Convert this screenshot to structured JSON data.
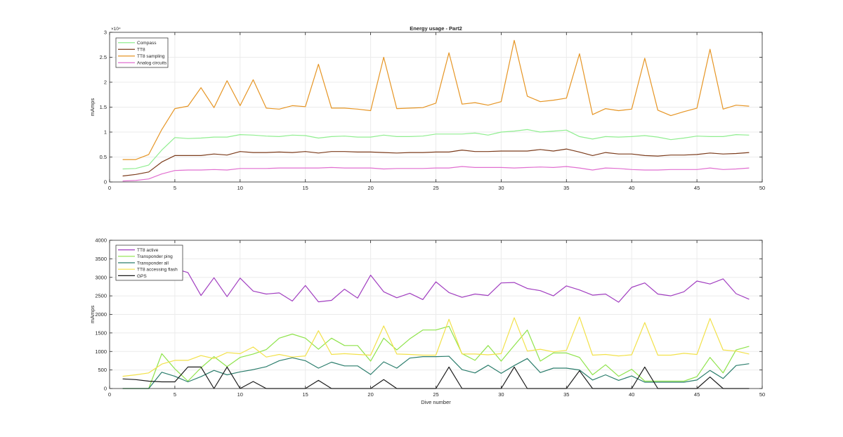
{
  "figure": {
    "background": "#ffffff"
  },
  "chart_data": [
    {
      "type": "line",
      "title": "Energy usage - Part2",
      "xlabel": "",
      "ylabel": "mAmps",
      "xlim": [
        0,
        50
      ],
      "ylim": [
        0,
        3
      ],
      "xticks": [
        0,
        5,
        10,
        15,
        20,
        25,
        30,
        35,
        40,
        45,
        50
      ],
      "yticks": [
        0,
        0.5,
        1,
        1.5,
        2,
        2.5,
        3
      ],
      "ytick_labels": [
        "0",
        "0.5",
        "1",
        "1.5",
        "2",
        "2.5",
        "3"
      ],
      "y_multiplier_label": "×10⁴",
      "grid": true,
      "legend_location": "top-left",
      "x": [
        1,
        2,
        3,
        4,
        5,
        6,
        7,
        8,
        9,
        10,
        11,
        12,
        13,
        14,
        15,
        16,
        17,
        18,
        19,
        20,
        21,
        22,
        23,
        24,
        25,
        26,
        27,
        28,
        29,
        30,
        31,
        32,
        33,
        34,
        35,
        36,
        37,
        38,
        39,
        40,
        41,
        42,
        43,
        44,
        45,
        46,
        47,
        48,
        49
      ],
      "series": [
        {
          "name": "Compass",
          "color": "#90ee90",
          "values": [
            0.26,
            0.27,
            0.34,
            0.64,
            0.89,
            0.87,
            0.88,
            0.9,
            0.9,
            0.95,
            0.94,
            0.92,
            0.91,
            0.94,
            0.93,
            0.88,
            0.91,
            0.92,
            0.9,
            0.9,
            0.94,
            0.91,
            0.91,
            0.92,
            0.96,
            0.96,
            0.96,
            0.98,
            0.94,
            1.0,
            1.02,
            1.05,
            1.0,
            1.02,
            1.04,
            0.91,
            0.86,
            0.91,
            0.9,
            0.91,
            0.93,
            0.9,
            0.85,
            0.88,
            0.92,
            0.91,
            0.91,
            0.95,
            0.94
          ]
        },
        {
          "name": "TT8",
          "color": "#7b3b1b",
          "values": [
            0.12,
            0.15,
            0.2,
            0.4,
            0.53,
            0.53,
            0.53,
            0.56,
            0.54,
            0.61,
            0.59,
            0.59,
            0.6,
            0.59,
            0.61,
            0.58,
            0.61,
            0.61,
            0.6,
            0.6,
            0.59,
            0.58,
            0.59,
            0.59,
            0.6,
            0.6,
            0.64,
            0.61,
            0.61,
            0.62,
            0.62,
            0.62,
            0.65,
            0.62,
            0.66,
            0.6,
            0.53,
            0.59,
            0.56,
            0.56,
            0.53,
            0.52,
            0.54,
            0.54,
            0.55,
            0.58,
            0.56,
            0.57,
            0.59
          ]
        },
        {
          "name": "TT8 sampling",
          "color": "#e69524",
          "values": [
            0.45,
            0.45,
            0.55,
            1.05,
            1.47,
            1.52,
            1.89,
            1.49,
            2.03,
            1.53,
            2.05,
            1.48,
            1.46,
            1.53,
            1.51,
            2.36,
            1.48,
            1.48,
            1.46,
            1.43,
            2.5,
            1.47,
            1.48,
            1.49,
            1.58,
            2.59,
            1.56,
            1.59,
            1.54,
            1.61,
            2.84,
            1.72,
            1.61,
            1.64,
            1.68,
            2.57,
            1.35,
            1.47,
            1.43,
            1.46,
            2.48,
            1.44,
            1.33,
            1.41,
            1.48,
            2.66,
            1.46,
            1.54,
            1.52
          ]
        },
        {
          "name": "Analog circuits",
          "color": "#e16fd0",
          "values": [
            0.02,
            0.03,
            0.06,
            0.16,
            0.23,
            0.24,
            0.24,
            0.25,
            0.24,
            0.27,
            0.27,
            0.27,
            0.28,
            0.28,
            0.28,
            0.28,
            0.29,
            0.28,
            0.28,
            0.28,
            0.26,
            0.27,
            0.27,
            0.27,
            0.28,
            0.28,
            0.31,
            0.29,
            0.29,
            0.29,
            0.28,
            0.29,
            0.3,
            0.29,
            0.31,
            0.28,
            0.24,
            0.28,
            0.27,
            0.25,
            0.24,
            0.24,
            0.25,
            0.25,
            0.25,
            0.28,
            0.25,
            0.26,
            0.28
          ]
        }
      ]
    },
    {
      "type": "line",
      "title": "",
      "xlabel": "Dive number",
      "ylabel": "mAmps",
      "xlim": [
        0,
        50
      ],
      "ylim": [
        0,
        4000
      ],
      "xticks": [
        0,
        5,
        10,
        15,
        20,
        25,
        30,
        35,
        40,
        45,
        50
      ],
      "yticks": [
        0,
        500,
        1000,
        1500,
        2000,
        2500,
        3000,
        3500,
        4000
      ],
      "ytick_labels": [
        "0",
        "500",
        "1000",
        "1500",
        "2000",
        "2500",
        "3000",
        "3500",
        "4000"
      ],
      "grid": true,
      "legend_location": "top-left",
      "x": [
        1,
        2,
        3,
        4,
        5,
        6,
        7,
        8,
        9,
        10,
        11,
        12,
        13,
        14,
        15,
        16,
        17,
        18,
        19,
        20,
        21,
        22,
        23,
        24,
        25,
        26,
        27,
        28,
        29,
        30,
        31,
        32,
        33,
        34,
        35,
        36,
        37,
        38,
        39,
        40,
        41,
        42,
        43,
        44,
        45,
        46,
        47,
        48,
        49
      ],
      "series": [
        {
          "name": "TT8 active",
          "color": "#a13ec0",
          "values": [
            null,
            null,
            null,
            null,
            3230,
            3130,
            2510,
            2990,
            2480,
            2980,
            2630,
            2550,
            2580,
            2360,
            2780,
            2340,
            2380,
            2680,
            2440,
            3060,
            2610,
            2450,
            2570,
            2400,
            2880,
            2590,
            2460,
            2550,
            2510,
            2850,
            2860,
            2700,
            2640,
            2500,
            2770,
            2660,
            2520,
            2550,
            2330,
            2730,
            2850,
            2550,
            2500,
            2610,
            2900,
            2820,
            2960,
            2560,
            2410
          ]
        },
        {
          "name": "Transponder ping",
          "color": "#8ee34a",
          "values": [
            0,
            0,
            0,
            940,
            530,
            200,
            560,
            860,
            590,
            840,
            930,
            1050,
            1360,
            1470,
            1360,
            1060,
            1360,
            1160,
            1160,
            740,
            1360,
            1040,
            1340,
            1580,
            1580,
            1680,
            940,
            760,
            1160,
            740,
            1160,
            1580,
            740,
            960,
            960,
            840,
            370,
            640,
            330,
            520,
            200,
            200,
            200,
            200,
            320,
            840,
            420,
            1040,
            1140
          ]
        },
        {
          "name": "Transponder all",
          "color": "#2b7d6c",
          "values": [
            0,
            0,
            0,
            440,
            330,
            180,
            320,
            490,
            370,
            450,
            510,
            590,
            750,
            830,
            750,
            550,
            710,
            610,
            610,
            380,
            720,
            550,
            820,
            860,
            860,
            870,
            510,
            420,
            630,
            410,
            620,
            810,
            430,
            550,
            550,
            500,
            230,
            370,
            220,
            340,
            170,
            170,
            170,
            170,
            230,
            490,
            270,
            620,
            670
          ]
        },
        {
          "name": "TT8 accessing flash",
          "color": "#f2e14a",
          "values": [
            330,
            370,
            420,
            660,
            760,
            760,
            890,
            810,
            970,
            940,
            1120,
            850,
            920,
            850,
            880,
            1560,
            920,
            940,
            920,
            900,
            1690,
            930,
            920,
            900,
            900,
            1870,
            930,
            930,
            910,
            940,
            1910,
            1010,
            1060,
            990,
            1030,
            1930,
            900,
            920,
            880,
            910,
            1780,
            900,
            900,
            950,
            920,
            1890,
            1040,
            1010,
            930
          ]
        },
        {
          "name": "GPS",
          "color": "#1a1a1a",
          "values": [
            260,
            240,
            200,
            180,
            180,
            580,
            580,
            0,
            580,
            0,
            190,
            0,
            0,
            0,
            0,
            220,
            0,
            0,
            0,
            0,
            240,
            0,
            0,
            0,
            0,
            580,
            0,
            0,
            0,
            0,
            580,
            0,
            0,
            0,
            0,
            480,
            0,
            0,
            0,
            0,
            580,
            0,
            0,
            0,
            0,
            310,
            0,
            0,
            0
          ]
        }
      ]
    }
  ]
}
